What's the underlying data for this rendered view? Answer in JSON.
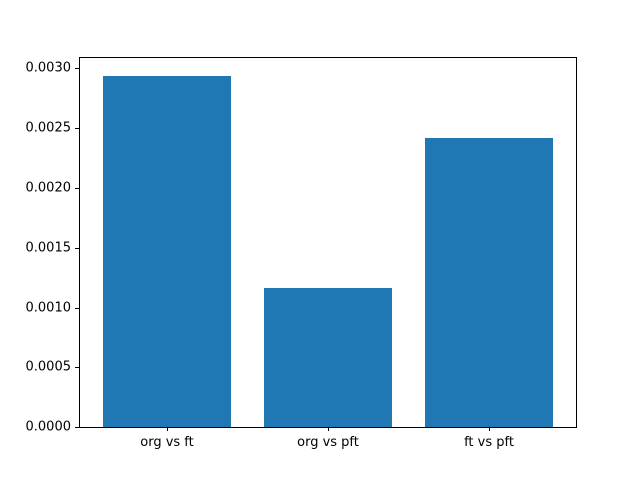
{
  "chart_data": {
    "type": "bar",
    "title": "",
    "xlabel": "",
    "ylabel": "",
    "categories": [
      "org vs ft",
      "org vs pft",
      "ft vs pft"
    ],
    "values": [
      0.00294,
      0.00116,
      0.00242
    ],
    "bar_color": "#1f77b4",
    "bar_width": 0.8,
    "xlim": [
      -0.54,
      2.54
    ],
    "ylim": [
      0,
      0.003087
    ],
    "yticks": [
      0.0,
      0.0005,
      0.001,
      0.0015,
      0.002,
      0.0025,
      0.003
    ],
    "ytick_labels": [
      "0.0000",
      "0.0005",
      "0.0010",
      "0.0015",
      "0.0020",
      "0.0025",
      "0.0030"
    ],
    "grid": false,
    "legend": null,
    "frame_color": "#000000",
    "background_color": "#ffffff"
  }
}
